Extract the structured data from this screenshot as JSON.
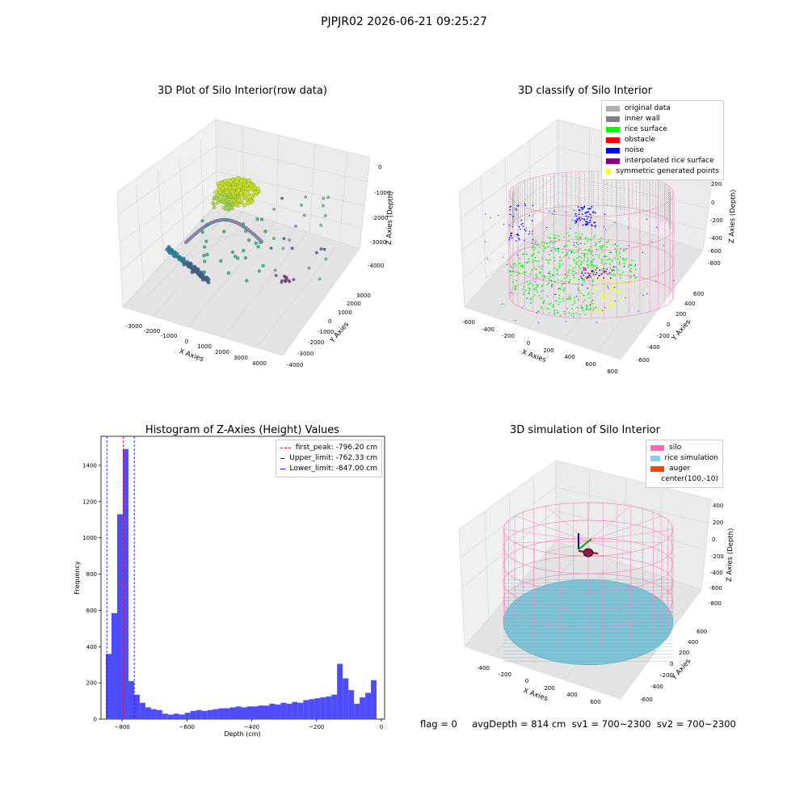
{
  "figure": {
    "suptitle": "PJPJR02 2026-06-21 09:25:27",
    "footer": "flag = 0     avgDepth = 814 cm  sv1 = 700~2300  sv2 = 700~2300"
  },
  "colors": {
    "axis_pane": "#f2f2f2",
    "grid": "#dddddd",
    "silo_wire": "#f28cc1",
    "rice_fill": "#7ec3d6",
    "hist_bar": "#4d4dff",
    "peak_line": "#ff0000",
    "limit_line": "#0000ff"
  },
  "panels": {
    "raw": {
      "title": "3D Plot of Silo Interior(row data)",
      "xlabel": "X Axies",
      "ylabel": "Y Axies",
      "zlabel": "Z Axies (Depth)",
      "xticks": [
        "-3000",
        "-2000",
        "-1000",
        "0",
        "1000",
        "2000",
        "3000",
        "4000"
      ],
      "yticks": [
        "-4000",
        "-3000",
        "-2000",
        "-1000",
        "0",
        "1000",
        "2000",
        "3000"
      ],
      "zticks": [
        "0",
        "-1000",
        "-2000",
        "-3000",
        "-4000"
      ],
      "colormap": "viridis"
    },
    "classify": {
      "title": "3D classify of Silo Interior",
      "xlabel": "X Axies",
      "ylabel": "Y Axies",
      "zlabel": "Z Axies (Depth)",
      "xticks": [
        "-600",
        "-400",
        "-200",
        "0",
        "200",
        "400",
        "600",
        "800"
      ],
      "yticks": [
        "-600",
        "-400",
        "-200",
        "0",
        "200",
        "400",
        "600"
      ],
      "zticks": [
        "200",
        "0",
        "-200",
        "-400",
        "-600",
        "-800"
      ],
      "legend": [
        {
          "label": "original data",
          "color": "#b0b0b0"
        },
        {
          "label": "inner wall",
          "color": "#808080"
        },
        {
          "label": "rice surface",
          "color": "#00ff00"
        },
        {
          "label": "obstacle",
          "color": "#ff0000"
        },
        {
          "label": "noise",
          "color": "#0000ff"
        },
        {
          "label": "interpolated rice surface",
          "color": "#800080"
        },
        {
          "label": "symmetric generated points",
          "color": "#ffff00"
        }
      ]
    },
    "simulation": {
      "title": "3D simulation of Silo Interior",
      "xlabel": "X Axies",
      "ylabel": "Y Axies",
      "zlabel": "Z Axies (Depth)",
      "xticks": [
        "-400",
        "-200",
        "0",
        "200",
        "400",
        "600"
      ],
      "yticks": [
        "-600",
        "-400",
        "-200",
        "0",
        "200",
        "400",
        "600"
      ],
      "zticks": [
        "400",
        "200",
        "0",
        "-200",
        "-400",
        "-600",
        "-800"
      ],
      "legend": [
        {
          "label": "silo",
          "color": "#ff69b4"
        },
        {
          "label": "rice simulation",
          "color": "#87ceeb"
        },
        {
          "label": "auger",
          "color": "#ff4500"
        },
        {
          "label": "center(100,-10)",
          "color": ""
        }
      ]
    }
  },
  "chart_data": {
    "type": "bar",
    "title": "Histogram of Z-Axies (Height) Values",
    "xlabel": "Depth (cm)",
    "ylabel": "Frequency",
    "xlim": [
      -865,
      10
    ],
    "ylim": [
      0,
      1560
    ],
    "xticks": [
      -800,
      -600,
      -400,
      -200,
      0
    ],
    "yticks": [
      0,
      200,
      400,
      600,
      800,
      1000,
      1200,
      1400
    ],
    "bin_start": -850,
    "bin_width": 17.4,
    "values": [
      360,
      585,
      1130,
      1490,
      210,
      135,
      90,
      65,
      55,
      50,
      30,
      25,
      30,
      25,
      35,
      45,
      50,
      45,
      50,
      55,
      60,
      60,
      65,
      70,
      65,
      70,
      70,
      75,
      75,
      85,
      80,
      90,
      85,
      95,
      90,
      105,
      110,
      115,
      120,
      125,
      135,
      305,
      225,
      160,
      85,
      120,
      145,
      215
    ],
    "vlines": [
      {
        "label": "first_peak: -796.20 cm",
        "x": -796.2,
        "color": "#ff0000"
      },
      {
        "label": "Upper_limit: -762.33 cm",
        "x": -762.33,
        "color": "#0000ff"
      },
      {
        "label": "Lower_limit: -847.00 cm",
        "x": -847.0,
        "color": "#0000ff"
      }
    ],
    "legend_position": "upper-right"
  }
}
